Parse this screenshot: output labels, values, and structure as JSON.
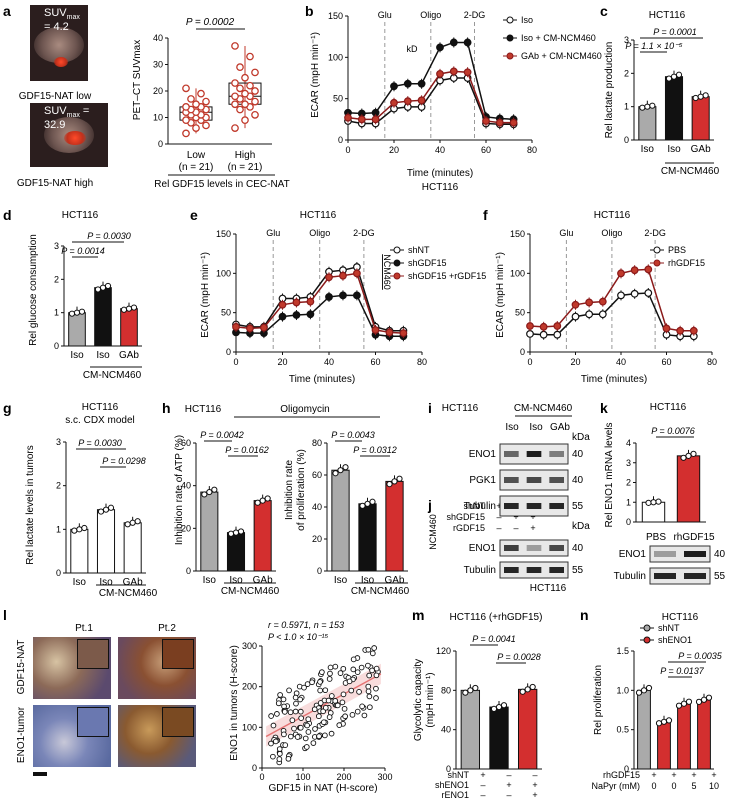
{
  "panels": {
    "a": {
      "letter": "a",
      "suv_low": "SUV",
      "suv_low_sub": "max",
      "suv_low_val": " = 4.2",
      "suv_high_val": " = 32.9",
      "label_low": "GDF15-NAT low",
      "label_high": "GDF15-NAT high",
      "ylabel": "PET–CT SUVmax",
      "p": "P = 0.0002",
      "groups": [
        "Low",
        "High"
      ],
      "n": [
        "(n = 21)",
        "(n = 21)"
      ],
      "xlabel": "Rel GDF15 levels in CEC-NAT",
      "yticks": [
        "0",
        "10",
        "20",
        "30",
        "40"
      ]
    },
    "b": {
      "letter": "b",
      "ylabel": "ECAR (mpH min⁻¹)",
      "xlabel": "Time (minutes)",
      "sub": "HCT116",
      "markers": [
        "Glu",
        "Oligo",
        "2-DG"
      ],
      "kd": "kD",
      "legend": [
        "Iso",
        "Iso + CM-NCM460",
        "GAb + CM-NCM460"
      ],
      "xticks": [
        "0",
        "20",
        "40",
        "60",
        "80"
      ],
      "yticks": [
        "0",
        "50",
        "100",
        "150"
      ]
    },
    "c": {
      "letter": "c",
      "title": "HCT116",
      "ylabel": "Rel lactate production",
      "p1": "P = 1.1 × 10⁻⁵",
      "p2": "P = 0.0001",
      "groups": [
        "Iso",
        "Iso",
        "GAb"
      ],
      "cm": "CM-NCM460",
      "yticks": [
        "0",
        "1",
        "2",
        "3"
      ]
    },
    "d": {
      "letter": "d",
      "title": "HCT116",
      "ylabel": "Rel glucose consumption",
      "p1": "P = 0.0014",
      "p2": "P = 0.0030",
      "groups": [
        "Iso",
        "Iso",
        "GAb"
      ],
      "cm": "CM-NCM460",
      "yticks": [
        "0",
        "1",
        "2",
        "3"
      ]
    },
    "e": {
      "letter": "e",
      "title": "HCT116",
      "ylabel": "ECAR (mpH min⁻¹)",
      "xlabel": "Time (minutes)",
      "markers": [
        "Glu",
        "Oligo",
        "2-DG"
      ],
      "side": "NCM460",
      "legend": [
        "shNT",
        "shGDF15",
        "shGDF15 +rGDF15"
      ],
      "xticks": [
        "0",
        "20",
        "40",
        "60",
        "80"
      ],
      "yticks": [
        "0",
        "50",
        "100",
        "150"
      ]
    },
    "f": {
      "letter": "f",
      "title": "HCT116",
      "ylabel": "ECAR (mpH min⁻¹)",
      "xlabel": "Time (minutes)",
      "markers": [
        "Glu",
        "Oligo",
        "2-DG"
      ],
      "legend": [
        "PBS",
        "rhGDF15"
      ],
      "xticks": [
        "0",
        "20",
        "40",
        "60",
        "80"
      ],
      "yticks": [
        "0",
        "50",
        "100",
        "150"
      ]
    },
    "g": {
      "letter": "g",
      "title": "HCT116",
      "subtitle": "s.c. CDX model",
      "ylabel": "Rel lactate levels in tumors",
      "p1": "P = 0.0030",
      "p2": "P = 0.0298",
      "groups": [
        "Iso",
        "Iso",
        "GAb"
      ],
      "cm": "CM-NCM460",
      "yticks": [
        "0",
        "1",
        "2",
        "3"
      ]
    },
    "h": {
      "letter": "h",
      "title": "HCT116",
      "oligo": "Oligomycin",
      "ylabel1": "Inhibition rate of ATP (%)",
      "ylabel2a": "Inhibition rate",
      "ylabel2b": "of proliferation (%)",
      "p1": "P = 0.0042",
      "p2": "P = 0.0162",
      "p3": "P = 0.0043",
      "p4": "P = 0.0312",
      "groups": [
        "Iso",
        "Iso",
        "GAb"
      ],
      "cm": "CM-NCM460",
      "yticks": [
        "0",
        "20",
        "40",
        "60"
      ],
      "yticks2": [
        "0",
        "20",
        "40",
        "60",
        "80"
      ]
    },
    "i": {
      "letter": "i",
      "cell": "HCT116",
      "cm": "CM-NCM460",
      "lanes": [
        "Iso",
        "Iso",
        "GAb"
      ],
      "kda": "kDa",
      "rows": [
        "ENO1",
        "PGK1",
        "Tubulin"
      ],
      "sizes": [
        "40",
        "40",
        "55"
      ]
    },
    "j": {
      "letter": "j",
      "side": "NCM460",
      "conds": [
        "shNT",
        "shGDF15",
        "rGDF15"
      ],
      "signs": [
        [
          "+",
          "–",
          "–"
        ],
        [
          "–",
          "+",
          "+"
        ],
        [
          "–",
          "–",
          "+"
        ]
      ],
      "rows": [
        "ENO1",
        "Tubulin"
      ],
      "sizes": [
        "40",
        "55"
      ],
      "kda": "kDa",
      "cell": "HCT116"
    },
    "k": {
      "letter": "k",
      "title": "HCT116",
      "ylabel": "Rel ENO1 mRNA levels",
      "p": "P = 0.0076",
      "groups": [
        "PBS",
        "rhGDF15"
      ],
      "rows": [
        "ENO1",
        "Tubulin"
      ],
      "sizes": [
        "40",
        "55"
      ],
      "yticks": [
        "0",
        "1",
        "2",
        "3",
        "4"
      ]
    },
    "l": {
      "letter": "l",
      "pt1": "Pt.1",
      "pt2": "Pt.2",
      "row1": "GDF15-NAT",
      "row2": "ENO1-tumor",
      "stats": "r = 0.5971, n = 153",
      "p": "P < 1.0 × 10⁻¹⁵",
      "ylabel": "ENO1 in tumors (H-score)",
      "xlabel": "GDF15 in NAT (H-score)",
      "xticks": [
        "0",
        "100",
        "200",
        "300"
      ],
      "yticks": [
        "0",
        "100",
        "200",
        "300"
      ]
    },
    "m": {
      "letter": "m",
      "title": "HCT116 (+rhGDF15)",
      "ylabel": "Glycolytic capacity",
      "ylabel2": "(mpH min⁻¹)",
      "p1": "P = 0.0041",
      "p2": "P = 0.0028",
      "conds": [
        "shNT",
        "shENO1",
        "rENO1"
      ],
      "signs": [
        [
          "+",
          "–",
          "–"
        ],
        [
          "–",
          "+",
          "+"
        ],
        [
          "–",
          "–",
          "+"
        ]
      ],
      "yticks": [
        "0",
        "40",
        "80",
        "120"
      ]
    },
    "n": {
      "letter": "n",
      "title": "HCT116",
      "ylabel": "Rel proliferation",
      "legend": [
        "shNT",
        "shENO1"
      ],
      "p1": "P = 0.0035",
      "p2": "P = 0.0137",
      "conds": [
        "rhGDF15",
        "NaPyr (mM)"
      ],
      "signs": [
        [
          "+",
          "+",
          "+",
          "+"
        ],
        [
          "0",
          "0",
          "5",
          "10"
        ]
      ],
      "yticks": [
        "0",
        "0.5",
        "1.0",
        "1.5"
      ]
    }
  },
  "chart_data": [
    {
      "panel": "a",
      "type": "scatter",
      "title": "",
      "xlabel": "Rel GDF15 levels in CEC-NAT",
      "ylabel": "PET–CT SUVmax",
      "categories": [
        "Low",
        "High"
      ],
      "ylim": [
        0,
        40
      ],
      "series": [
        {
          "name": "Low",
          "values": [
            4,
            6,
            7,
            8,
            9,
            9,
            10,
            10,
            11,
            11,
            12,
            12,
            13,
            13,
            14,
            14,
            15,
            16,
            17,
            19,
            21
          ]
        },
        {
          "name": "High",
          "values": [
            6,
            9,
            11,
            13,
            14,
            15,
            15,
            16,
            17,
            18,
            18,
            19,
            20,
            21,
            22,
            23,
            25,
            27,
            29,
            33,
            37
          ]
        }
      ]
    },
    {
      "panel": "b",
      "type": "line",
      "xlabel": "Time (minutes)",
      "ylabel": "ECAR (mpH min⁻¹)",
      "ylim": [
        0,
        150
      ],
      "xlim": [
        0,
        80
      ],
      "x": [
        0,
        6,
        12,
        20,
        26,
        32,
        40,
        46,
        52,
        60,
        66,
        72
      ],
      "series": [
        {
          "name": "Iso",
          "values": [
            23,
            20,
            20,
            38,
            40,
            40,
            72,
            75,
            75,
            20,
            19,
            19
          ]
        },
        {
          "name": "Iso + CM-NCM460",
          "values": [
            33,
            32,
            33,
            65,
            68,
            68,
            112,
            118,
            118,
            28,
            26,
            25
          ]
        },
        {
          "name": "GAb + CM-NCM460",
          "values": [
            27,
            25,
            25,
            45,
            47,
            48,
            80,
            83,
            82,
            23,
            21,
            21
          ]
        }
      ]
    },
    {
      "panel": "c",
      "type": "bar",
      "categories": [
        "Iso",
        "Iso + CM",
        "GAb + CM"
      ],
      "values": [
        1.0,
        1.9,
        1.3
      ],
      "ylim": [
        0,
        3
      ]
    },
    {
      "panel": "d",
      "type": "bar",
      "categories": [
        "Iso",
        "Iso + CM",
        "GAb + CM"
      ],
      "values": [
        1.0,
        1.75,
        1.12
      ],
      "ylim": [
        0,
        3
      ]
    },
    {
      "panel": "e",
      "type": "line",
      "ylim": [
        0,
        150
      ],
      "xlim": [
        0,
        80
      ],
      "x": [
        0,
        6,
        12,
        20,
        26,
        32,
        40,
        46,
        52,
        60,
        66,
        72
      ],
      "series": [
        {
          "name": "shNT",
          "values": [
            35,
            32,
            32,
            68,
            68,
            70,
            102,
            104,
            108,
            32,
            27,
            27
          ]
        },
        {
          "name": "shGDF15",
          "values": [
            25,
            24,
            24,
            45,
            47,
            48,
            70,
            72,
            72,
            22,
            20,
            20
          ]
        },
        {
          "name": "shGDF15 +rGDF15",
          "values": [
            32,
            30,
            31,
            60,
            63,
            64,
            95,
            97,
            100,
            28,
            25,
            24
          ]
        }
      ]
    },
    {
      "panel": "f",
      "type": "line",
      "ylim": [
        0,
        150
      ],
      "xlim": [
        0,
        80
      ],
      "x": [
        0,
        6,
        12,
        20,
        26,
        32,
        40,
        46,
        52,
        60,
        66,
        72
      ],
      "series": [
        {
          "name": "PBS",
          "values": [
            23,
            22,
            22,
            45,
            48,
            48,
            72,
            74,
            75,
            22,
            20,
            20
          ]
        },
        {
          "name": "rhGDF15",
          "values": [
            33,
            32,
            33,
            60,
            63,
            64,
            100,
            104,
            105,
            30,
            27,
            27
          ]
        }
      ]
    },
    {
      "panel": "g",
      "type": "bar",
      "categories": [
        "Iso",
        "Iso + CM",
        "GAb + CM"
      ],
      "values": [
        1.0,
        1.45,
        1.15
      ],
      "ylim": [
        0,
        3
      ]
    },
    {
      "panel": "h1",
      "type": "bar",
      "categories": [
        "Iso",
        "Iso + CM",
        "GAb + CM"
      ],
      "values": [
        37,
        18,
        33
      ],
      "ylim": [
        0,
        60
      ],
      "ylabel": "Inhibition rate of ATP (%)"
    },
    {
      "panel": "h2",
      "type": "bar",
      "categories": [
        "Iso",
        "Iso + CM",
        "GAb + CM"
      ],
      "values": [
        63,
        42,
        56
      ],
      "ylim": [
        0,
        80
      ],
      "ylabel": "Inhibition rate of proliferation (%)"
    },
    {
      "panel": "k",
      "type": "bar",
      "categories": [
        "PBS",
        "rhGDF15"
      ],
      "values": [
        1.0,
        3.35
      ],
      "ylim": [
        0,
        4
      ]
    },
    {
      "panel": "l",
      "type": "scatter",
      "xlabel": "GDF15 in NAT (H-score)",
      "ylabel": "ENO1 in tumors (H-score)",
      "xlim": [
        0,
        300
      ],
      "ylim": [
        0,
        300
      ],
      "fit": {
        "slope": 0.55,
        "intercept": 72
      }
    },
    {
      "panel": "m",
      "type": "bar",
      "categories": [
        "shNT",
        "shENO1",
        "shENO1 + rENO1"
      ],
      "values": [
        80,
        63,
        81
      ],
      "ylim": [
        0,
        120
      ]
    },
    {
      "panel": "n",
      "type": "bar",
      "categories": [
        "shNT 0",
        "shENO1 0",
        "shENO1 5",
        "shENO1 10"
      ],
      "values": [
        1.0,
        0.6,
        0.83,
        0.88
      ],
      "ylim": [
        0,
        1.5
      ]
    }
  ]
}
